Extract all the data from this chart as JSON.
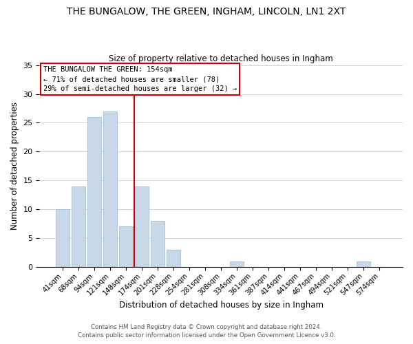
{
  "title": "THE BUNGALOW, THE GREEN, INGHAM, LINCOLN, LN1 2XT",
  "subtitle": "Size of property relative to detached houses in Ingham",
  "xlabel": "Distribution of detached houses by size in Ingham",
  "ylabel": "Number of detached properties",
  "bar_labels": [
    "41sqm",
    "68sqm",
    "94sqm",
    "121sqm",
    "148sqm",
    "174sqm",
    "201sqm",
    "228sqm",
    "254sqm",
    "281sqm",
    "308sqm",
    "334sqm",
    "361sqm",
    "387sqm",
    "414sqm",
    "441sqm",
    "467sqm",
    "494sqm",
    "521sqm",
    "547sqm",
    "574sqm"
  ],
  "bar_values": [
    10,
    14,
    26,
    27,
    7,
    14,
    8,
    3,
    0,
    0,
    0,
    1,
    0,
    0,
    0,
    0,
    0,
    0,
    0,
    1,
    0
  ],
  "bar_color": "#c8d8e8",
  "bar_edge_color": "#aec6d8",
  "vline_color": "#cc0000",
  "ylim": [
    0,
    35
  ],
  "yticks": [
    0,
    5,
    10,
    15,
    20,
    25,
    30,
    35
  ],
  "annotation_title": "THE BUNGALOW THE GREEN: 154sqm",
  "annotation_line1": "← 71% of detached houses are smaller (78)",
  "annotation_line2": "29% of semi-detached houses are larger (32) →",
  "annotation_box_color": "#cc0000",
  "footer1": "Contains HM Land Registry data © Crown copyright and database right 2024.",
  "footer2": "Contains public sector information licensed under the Open Government Licence v3.0.",
  "background_color": "#ffffff",
  "grid_color": "#cccccc"
}
